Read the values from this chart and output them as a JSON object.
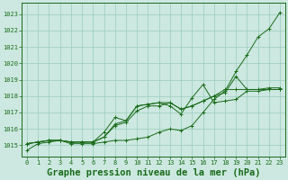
{
  "title": "Graphe pression niveau de la mer (hPa)",
  "bg_color": "#cce8e0",
  "grid_color": "#99ccbb",
  "line_color": "#1a6b1a",
  "xlim": [
    -0.5,
    23.5
  ],
  "ylim": [
    1014.3,
    1023.7
  ],
  "yticks": [
    1015,
    1016,
    1017,
    1018,
    1019,
    1020,
    1021,
    1022,
    1023
  ],
  "xticks": [
    0,
    1,
    2,
    3,
    4,
    5,
    6,
    7,
    8,
    9,
    10,
    11,
    12,
    13,
    14,
    15,
    16,
    17,
    18,
    19,
    20,
    21,
    22,
    23
  ],
  "series": [
    [
      1014.7,
      1015.1,
      1015.2,
      1015.3,
      1015.1,
      1015.1,
      1015.1,
      1015.2,
      1015.3,
      1015.3,
      1015.4,
      1015.5,
      1015.8,
      1016.0,
      1015.9,
      1016.2,
      1017.0,
      1017.8,
      1018.3,
      1019.5,
      1020.5,
      1021.6,
      1022.1,
      1023.1
    ],
    [
      1015.1,
      1015.2,
      1015.3,
      1015.3,
      1015.2,
      1015.2,
      1015.2,
      1015.5,
      1016.3,
      1016.5,
      1017.4,
      1017.5,
      1017.6,
      1017.6,
      1017.2,
      1017.4,
      1017.7,
      1018.0,
      1018.2,
      1019.2,
      1018.4,
      1018.4,
      1018.4,
      1018.4
    ],
    [
      1015.1,
      1015.2,
      1015.3,
      1015.3,
      1015.2,
      1015.2,
      1015.2,
      1015.8,
      1016.7,
      1016.5,
      1017.4,
      1017.5,
      1017.6,
      1017.4,
      1016.9,
      1017.9,
      1018.7,
      1017.6,
      1017.7,
      1017.8,
      1018.3,
      1018.3,
      1018.4,
      1018.4
    ],
    [
      1015.1,
      1015.2,
      1015.3,
      1015.3,
      1015.2,
      1015.2,
      1015.2,
      1015.5,
      1016.2,
      1016.4,
      1017.1,
      1017.4,
      1017.4,
      1017.6,
      1017.2,
      1017.4,
      1017.7,
      1018.0,
      1018.4,
      1018.4,
      1018.4,
      1018.4,
      1018.5,
      1018.5
    ]
  ],
  "font_color": "#1a6b1a",
  "tick_fontsize": 5.0,
  "title_fontsize": 7.5
}
